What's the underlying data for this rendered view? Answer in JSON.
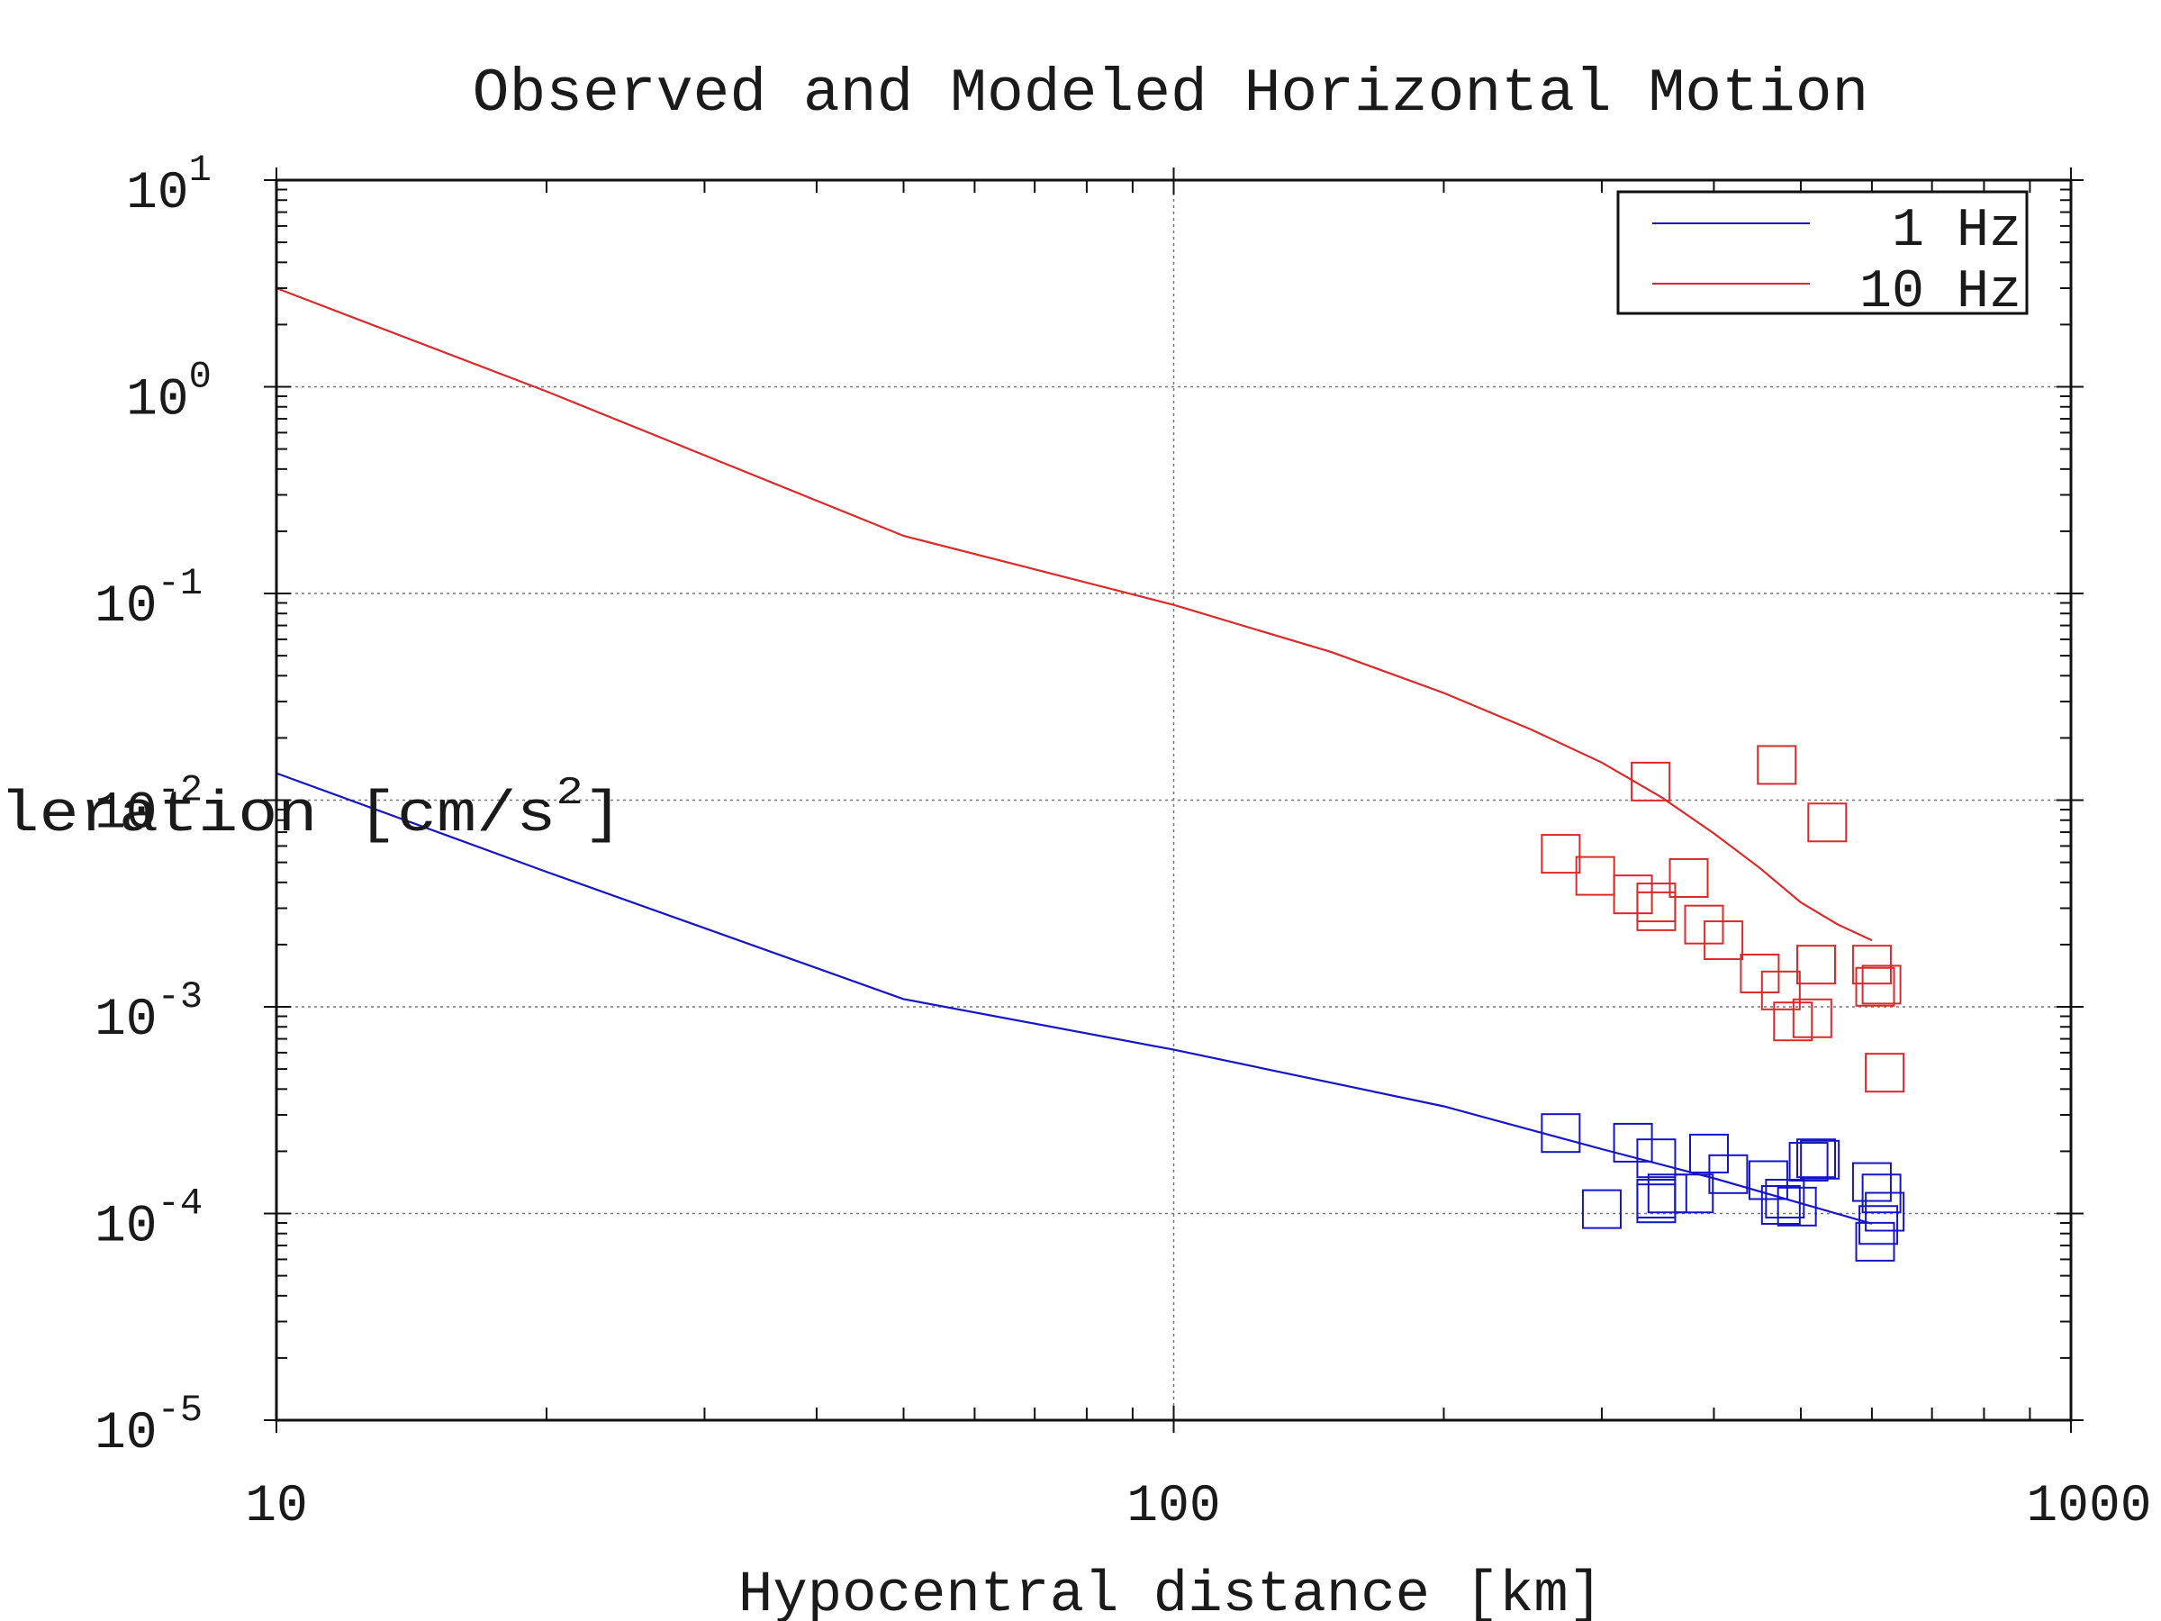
{
  "chart_data": {
    "type": "scatter",
    "title": "Observed and Modeled Horizontal Motion",
    "xlabel": "Hypocentral distance [km]",
    "ylabel_base": "Peak acceleration [cm/s",
    "ylabel_sup": "2",
    "ylabel_end": "]",
    "x_scale": "log",
    "y_scale": "log",
    "xlim": [
      10,
      1000
    ],
    "ylim": [
      1e-05,
      10
    ],
    "x_ticks": [
      {
        "value": 10,
        "label": "10"
      },
      {
        "value": 100,
        "label": "100"
      },
      {
        "value": 1000,
        "label": "1000"
      }
    ],
    "y_ticks": [
      {
        "value": 10,
        "base": "10",
        "exp": "1"
      },
      {
        "value": 1,
        "base": "10",
        "exp": "0"
      },
      {
        "value": 0.1,
        "base": "10",
        "exp": "-1"
      },
      {
        "value": 0.01,
        "base": "10",
        "exp": "-2"
      },
      {
        "value": 0.001,
        "base": "10",
        "exp": "-3"
      },
      {
        "value": 0.0001,
        "base": "10",
        "exp": "-4"
      },
      {
        "value": 1e-05,
        "base": "10",
        "exp": "-5"
      }
    ],
    "grid": {
      "major_x": true,
      "major_y": true,
      "style": "dotted"
    },
    "legend": {
      "position": "top-right",
      "frame": true
    },
    "series": [
      {
        "name": "1 Hz",
        "color": "#1515c8",
        "model_x": [
          10,
          20,
          50,
          100,
          200,
          300,
          400,
          500,
          600
        ],
        "model_y": [
          0.0135,
          0.0045,
          0.00109,
          0.00062,
          0.00033,
          0.000205,
          0.000148,
          0.000112,
          8.93e-05
        ],
        "observed_x": [
          270,
          300,
          325,
          345,
          345,
          345,
          355,
          380,
          395,
          415,
          460,
          475,
          480,
          495,
          510,
          520,
          525,
          600,
          605,
          610,
          615,
          620
        ],
        "observed_y": [
          0.000245,
          0.000105,
          0.00022,
          0.000185,
          0.000118,
          0.000112,
          0.000125,
          0.000125,
          0.000195,
          0.000155,
          0.000145,
          0.00011,
          0.000118,
          0.000108,
          0.000178,
          0.000185,
          0.000182,
          0.000142,
          7.3e-05,
          8.8e-05,
          0.000125,
          0.000102
        ]
      },
      {
        "name": "10 Hz",
        "color": "#dc2a2a",
        "model_x": [
          10,
          20,
          50,
          100,
          150,
          200,
          250,
          300,
          350,
          400,
          450,
          500,
          550,
          600
        ],
        "model_y": [
          3.0,
          0.95,
          0.19,
          0.088,
          0.052,
          0.033,
          0.022,
          0.0152,
          0.0103,
          0.0069,
          0.0047,
          0.0032,
          0.0025,
          0.0021
        ],
        "observed_x": [
          270,
          295,
          325,
          340,
          345,
          345,
          375,
          390,
          410,
          450,
          470,
          475,
          490,
          515,
          520,
          535,
          600,
          605,
          615,
          620
        ],
        "observed_y": [
          0.0055,
          0.0043,
          0.0035,
          0.0123,
          0.0032,
          0.0029,
          0.0042,
          0.0025,
          0.0021,
          0.00145,
          0.0148,
          0.0012,
          0.00085,
          0.00088,
          0.0016,
          0.0078,
          0.0016,
          0.00125,
          0.00128,
          0.00048
        ]
      }
    ]
  }
}
